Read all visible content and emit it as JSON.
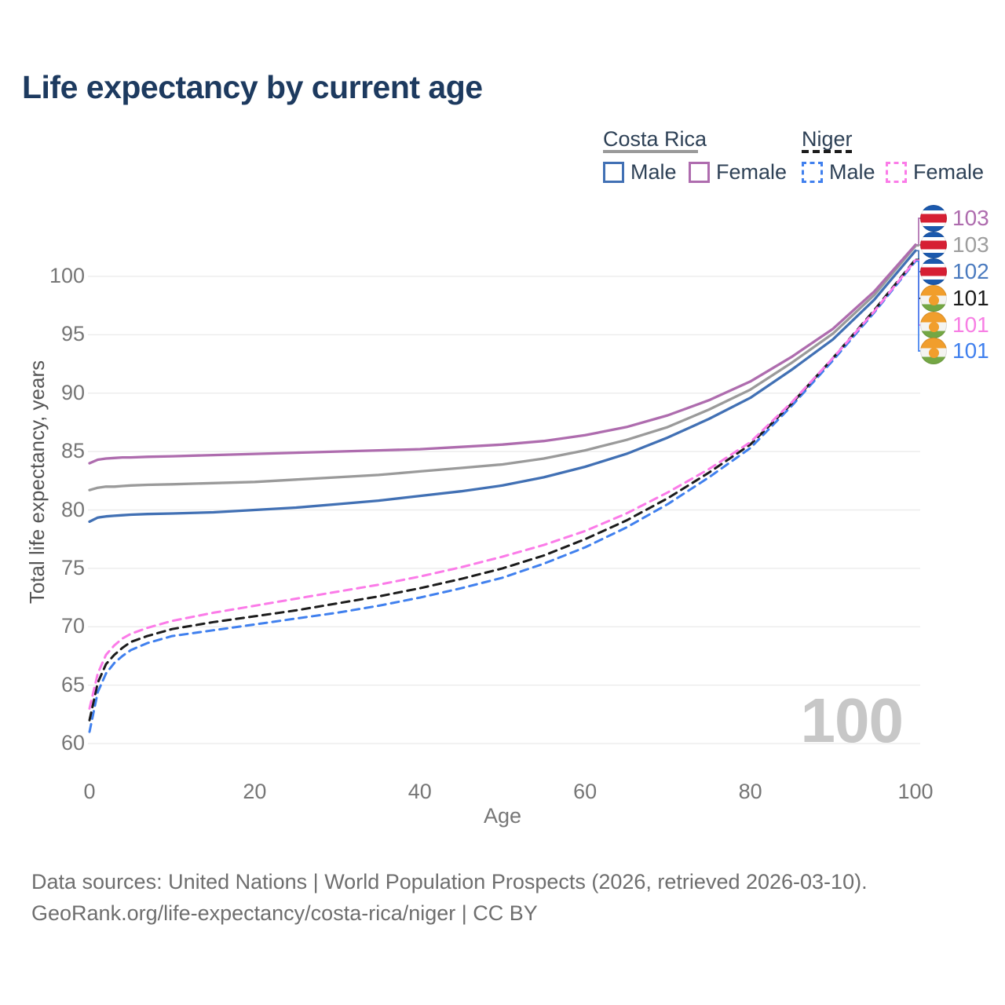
{
  "title": "Life expectancy by current age",
  "legend": {
    "groups": [
      {
        "country": "Costa Rica",
        "line_style": "solid",
        "line_color": "#9a9a9a",
        "items": [
          {
            "label": "Male",
            "color": "#4170b4",
            "style": "solid"
          },
          {
            "label": "Female",
            "color": "#ae6cae",
            "style": "solid"
          }
        ]
      },
      {
        "country": "Niger",
        "line_style": "dashed",
        "line_color": "#1c1c1c",
        "items": [
          {
            "label": "Male",
            "color": "#4080ee",
            "style": "dashed"
          },
          {
            "label": "Female",
            "color": "#fb7be8",
            "style": "dashed"
          }
        ]
      }
    ]
  },
  "chart_data": {
    "type": "line",
    "title": "Life expectancy by current age",
    "xlabel": "Age",
    "ylabel": "Total life expectancy, years",
    "xlim": [
      0,
      100
    ],
    "ylim": [
      60,
      100
    ],
    "grid": true,
    "xticks": [
      0,
      20,
      40,
      60,
      80,
      100
    ],
    "yticks": [
      60,
      65,
      70,
      75,
      80,
      85,
      90,
      95,
      100
    ],
    "x": [
      0,
      1,
      2,
      3,
      4,
      5,
      7,
      10,
      15,
      20,
      25,
      30,
      35,
      40,
      45,
      50,
      55,
      60,
      65,
      70,
      75,
      80,
      85,
      90,
      95,
      100
    ],
    "series": [
      {
        "name": "Costa Rica Female",
        "color": "#ae6cae",
        "dash": false,
        "values": [
          84.0,
          84.3,
          84.4,
          84.45,
          84.5,
          84.5,
          84.55,
          84.6,
          84.7,
          84.8,
          84.9,
          85.0,
          85.1,
          85.2,
          85.4,
          85.6,
          85.9,
          86.4,
          87.1,
          88.1,
          89.4,
          91.0,
          93.1,
          95.5,
          98.7,
          102.7
        ]
      },
      {
        "name": "Costa Rica",
        "color": "#9a9a9a",
        "dash": false,
        "values": [
          81.7,
          81.9,
          82.0,
          82.0,
          82.05,
          82.1,
          82.15,
          82.2,
          82.3,
          82.4,
          82.6,
          82.8,
          83.0,
          83.3,
          83.6,
          83.9,
          84.4,
          85.1,
          86.0,
          87.1,
          88.6,
          90.3,
          92.6,
          95.1,
          98.4,
          102.6
        ]
      },
      {
        "name": "Costa Rica Male",
        "color": "#4170b4",
        "dash": false,
        "values": [
          79.0,
          79.35,
          79.45,
          79.5,
          79.55,
          79.6,
          79.65,
          79.7,
          79.8,
          80.0,
          80.2,
          80.5,
          80.8,
          81.2,
          81.6,
          82.1,
          82.8,
          83.7,
          84.8,
          86.2,
          87.8,
          89.6,
          92.0,
          94.6,
          98.0,
          102.2
        ]
      },
      {
        "name": "Niger Female",
        "color": "#fb7be8",
        "dash": true,
        "values": [
          63.0,
          66.0,
          67.6,
          68.4,
          69.0,
          69.4,
          69.9,
          70.5,
          71.2,
          71.8,
          72.4,
          73.0,
          73.6,
          74.3,
          75.1,
          76.0,
          77.0,
          78.2,
          79.7,
          81.5,
          83.5,
          85.8,
          89.2,
          93.0,
          97.0,
          101.4
        ]
      },
      {
        "name": "Niger",
        "color": "#1c1c1c",
        "dash": true,
        "values": [
          62.0,
          65.2,
          66.8,
          67.6,
          68.2,
          68.7,
          69.2,
          69.8,
          70.4,
          70.9,
          71.4,
          72.0,
          72.6,
          73.3,
          74.1,
          75.0,
          76.1,
          77.5,
          79.1,
          81.0,
          83.2,
          85.6,
          89.1,
          93.0,
          97.1,
          101.45
        ]
      },
      {
        "name": "Niger Male",
        "color": "#4080ee",
        "dash": true,
        "values": [
          61.0,
          64.4,
          66.0,
          66.9,
          67.5,
          68.0,
          68.6,
          69.2,
          69.7,
          70.2,
          70.7,
          71.2,
          71.8,
          72.5,
          73.3,
          74.2,
          75.4,
          76.8,
          78.5,
          80.5,
          82.8,
          85.3,
          88.9,
          92.8,
          96.9,
          101.3
        ]
      }
    ],
    "end_labels": [
      {
        "value": "103",
        "color": "#ae6cae",
        "flag": "costa-rica",
        "series_index": 0
      },
      {
        "value": "103",
        "color": "#9e9e9e",
        "flag": "costa-rica",
        "series_index": 1
      },
      {
        "value": "102",
        "color": "#4b7bbf",
        "flag": "costa-rica",
        "series_index": 2
      },
      {
        "value": "101",
        "color": "#1c1c1c",
        "flag": "niger",
        "series_index": 4
      },
      {
        "value": "101",
        "color": "#f77fe4",
        "flag": "niger",
        "series_index": 3
      },
      {
        "value": "101",
        "color": "#4080ee",
        "flag": "niger",
        "series_index": 5
      }
    ],
    "watermark": "100",
    "legend_position": "top-right"
  },
  "footer": {
    "line1": "Data sources: United Nations | World Population Prospects (2026, retrieved 2026-03-10).",
    "line2": "GeoRank.org/life-expectancy/costa-rica/niger | CC BY"
  }
}
